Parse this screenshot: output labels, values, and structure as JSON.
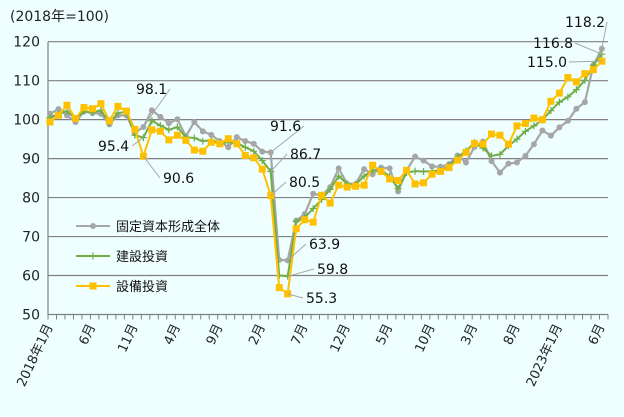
{
  "chart_data": {
    "type": "line",
    "unit_label": "(2018年=100)",
    "ylim": [
      50,
      120
    ],
    "yticks": [
      "50",
      "60",
      "70",
      "80",
      "90",
      "100",
      "110",
      "120"
    ],
    "grid": true,
    "legend_placement": "left-middle",
    "x_start": "2018-01",
    "x_tick_labels": [
      {
        "i": 0,
        "label": "2018年1月"
      },
      {
        "i": 5,
        "label": "6月"
      },
      {
        "i": 10,
        "label": "11月"
      },
      {
        "i": 15,
        "label": "4月"
      },
      {
        "i": 20,
        "label": "9月"
      },
      {
        "i": 25,
        "label": "2月"
      },
      {
        "i": 30,
        "label": "7月"
      },
      {
        "i": 35,
        "label": "12月"
      },
      {
        "i": 40,
        "label": "5月"
      },
      {
        "i": 45,
        "label": "10月"
      },
      {
        "i": 50,
        "label": "3月"
      },
      {
        "i": 55,
        "label": "8月"
      },
      {
        "i": 60,
        "label": "2023年1月"
      },
      {
        "i": 65,
        "label": "6月"
      }
    ],
    "series": [
      {
        "name": "固定資本形成全体",
        "color": "#a6a6a6",
        "marker": "circle",
        "values": [
          101.5,
          102.7,
          101.1,
          99.4,
          102.1,
          101.7,
          101.5,
          98.8,
          101.1,
          101.1,
          96.6,
          98.1,
          102.4,
          100.7,
          99.1,
          100.1,
          95.7,
          99.4,
          97.0,
          96.1,
          94.5,
          92.9,
          95.5,
          94.5,
          93.8,
          91.8,
          91.6,
          64.0,
          63.9,
          74.1,
          75.8,
          81.0,
          80.5,
          82.7,
          87.5,
          83.5,
          83.5,
          87.3,
          86.0,
          87.7,
          87.5,
          81.6,
          87.0,
          90.5,
          89.5,
          88.0,
          87.9,
          88.6,
          90.8,
          89.0,
          93.0,
          94.4,
          89.4,
          86.4,
          88.7,
          89.0,
          90.7,
          93.7,
          97.2,
          95.9,
          98.0,
          99.7,
          102.8,
          104.5,
          114.0,
          118.2
        ]
      },
      {
        "name": "建設投資",
        "color": "#70ad47",
        "marker": "plus",
        "values": [
          100.5,
          101.5,
          102.2,
          100.3,
          102.2,
          101.8,
          102.4,
          99.1,
          101.7,
          102.0,
          96.0,
          95.4,
          99.7,
          98.5,
          97.4,
          98.1,
          95.5,
          95.3,
          94.5,
          94.7,
          94.0,
          94.2,
          94.0,
          92.9,
          91.9,
          89.5,
          86.7,
          60.0,
          59.8,
          73.9,
          74.9,
          77.2,
          79.5,
          82.1,
          85.5,
          83.5,
          83.4,
          85.5,
          87.0,
          87.0,
          85.5,
          82.3,
          86.4,
          86.8,
          86.7,
          86.8,
          87.0,
          88.1,
          90.3,
          92.0,
          94.1,
          92.7,
          90.7,
          91.1,
          93.3,
          95.0,
          97.0,
          98.4,
          99.9,
          102.3,
          104.5,
          105.8,
          107.7,
          110.1,
          114.0,
          116.8
        ]
      },
      {
        "name": "設備投資",
        "color": "#ffc000",
        "marker": "square",
        "values": [
          99.4,
          101.1,
          103.7,
          100.3,
          103.1,
          102.8,
          104.1,
          99.7,
          103.4,
          102.2,
          97.5,
          90.6,
          97.4,
          97.0,
          94.8,
          96.0,
          94.7,
          92.2,
          91.9,
          94.2,
          93.8,
          95.1,
          93.8,
          90.8,
          90.2,
          87.3,
          80.5,
          56.9,
          55.3,
          72.0,
          74.3,
          73.7,
          80.6,
          78.6,
          83.2,
          82.7,
          82.9,
          83.2,
          88.3,
          86.7,
          84.8,
          84.4,
          87.0,
          83.5,
          83.8,
          86.0,
          86.7,
          87.7,
          89.6,
          91.6,
          93.9,
          93.7,
          96.3,
          96.0,
          93.7,
          98.4,
          99.0,
          100.4,
          100.0,
          104.7,
          106.8,
          110.8,
          109.7,
          111.8,
          112.8,
          115.0
        ]
      }
    ],
    "annotations": [
      {
        "series": 0,
        "i": 11,
        "text": "98.1"
      },
      {
        "series": 1,
        "i": 11,
        "text": "95.4"
      },
      {
        "series": 2,
        "i": 11,
        "text": "90.6"
      },
      {
        "series": 0,
        "i": 26,
        "text": "91.6"
      },
      {
        "series": 1,
        "i": 26,
        "text": "86.7"
      },
      {
        "series": 2,
        "i": 26,
        "text": "80.5"
      },
      {
        "series": 0,
        "i": 28,
        "text": "63.9"
      },
      {
        "series": 1,
        "i": 28,
        "text": "59.8"
      },
      {
        "series": 2,
        "i": 28,
        "text": "55.3"
      },
      {
        "series": 0,
        "i": 65,
        "text": "118.2"
      },
      {
        "series": 1,
        "i": 65,
        "text": "116.8"
      },
      {
        "series": 2,
        "i": 65,
        "text": "115.0"
      }
    ]
  }
}
